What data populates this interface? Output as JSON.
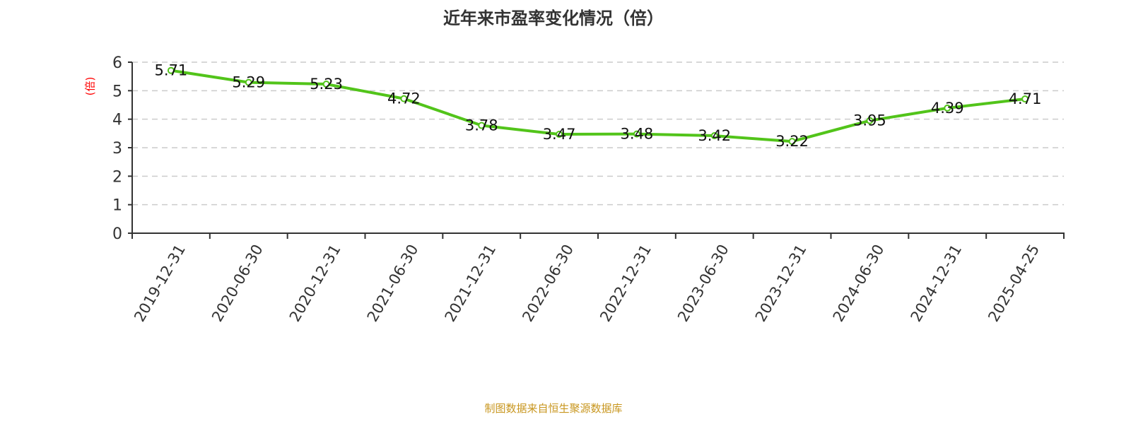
{
  "chart_data": {
    "type": "line",
    "title": "近年来市盈率变化情况（倍）",
    "ylabel": "(倍)",
    "xlabel": "",
    "categories": [
      "2019-12-31",
      "2020-06-30",
      "2020-12-31",
      "2021-06-30",
      "2021-12-31",
      "2022-06-30",
      "2022-12-31",
      "2023-06-30",
      "2023-12-31",
      "2024-06-30",
      "2024-12-31",
      "2025-04-25"
    ],
    "values": [
      5.71,
      5.29,
      5.23,
      4.72,
      3.78,
      3.47,
      3.48,
      3.42,
      3.22,
      3.95,
      4.39,
      4.71
    ],
    "ylim": [
      0,
      6
    ],
    "yticks": [
      0,
      1,
      2,
      3,
      4,
      5,
      6
    ],
    "grid": "horizontal dashed",
    "line_color": "#52c41a",
    "ylabel_color": "#ff0000"
  },
  "footer": {
    "source": "制图数据来自恒生聚源数据库"
  }
}
